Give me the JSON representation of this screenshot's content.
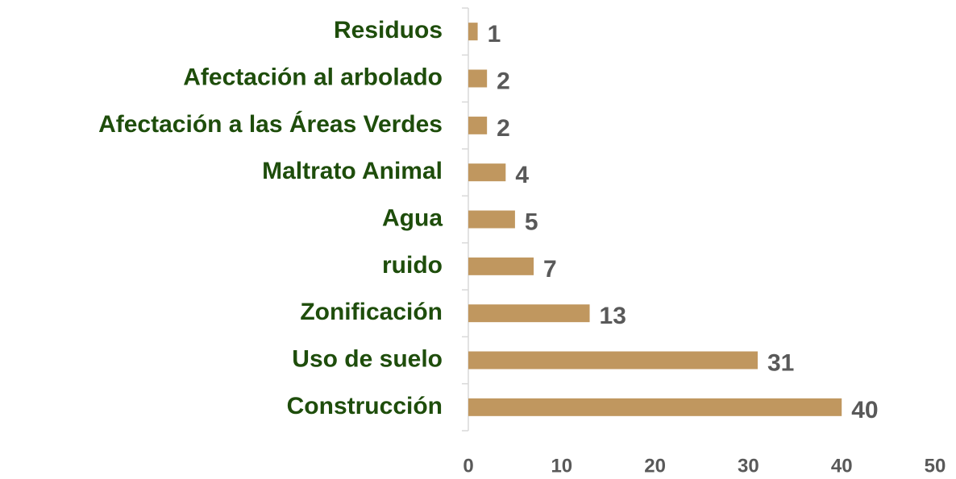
{
  "chart_data": {
    "type": "bar",
    "orientation": "horizontal",
    "categories": [
      "Residuos",
      "Afectación al arbolado",
      "Afectación a las Áreas Verdes",
      "Maltrato Animal",
      "Agua",
      "ruido",
      "Zonificación",
      "Uso de suelo",
      "Construcción"
    ],
    "values": [
      1,
      2,
      2,
      4,
      5,
      7,
      13,
      31,
      40
    ],
    "color": "#c0975f",
    "xlim": [
      0,
      50
    ],
    "xticks": [
      0,
      10,
      20,
      30,
      40,
      50
    ],
    "grid": false
  }
}
